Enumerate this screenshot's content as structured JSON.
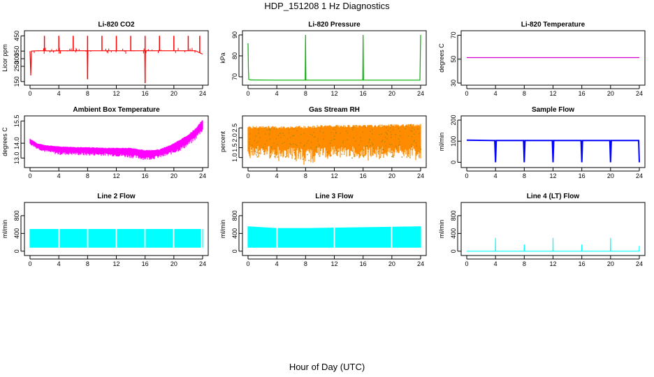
{
  "page_title": "HDP_151208  1 Hz Diagnostics",
  "x_title": "Hour of Day (UTC)",
  "chart_data": [
    {
      "type": "line",
      "title": "Li-820 CO2",
      "ylabel": "Licor ppm",
      "color": "#ff0000",
      "xlim": [
        0,
        24
      ],
      "ylim": [
        140,
        470
      ],
      "xticks": [
        0,
        4,
        8,
        12,
        16,
        20,
        24
      ],
      "yticks": [
        150,
        250,
        300,
        350,
        450
      ],
      "ytick_labels": [
        "150",
        "250",
        "300",
        "350",
        "450"
      ],
      "series": [
        {
          "x": [
            0,
            0.1,
            0.2,
            1,
            2,
            3,
            4,
            5,
            6,
            7,
            7.95,
            8,
            8.05,
            9,
            10,
            11,
            12,
            13,
            14,
            15,
            15.95,
            16,
            16.05,
            17,
            18,
            19,
            20,
            21,
            22,
            23,
            24
          ],
          "y": [
            350,
            190,
            350,
            352,
            352,
            351,
            352,
            352,
            352,
            352,
            352,
            165,
            352,
            352,
            352,
            352,
            352,
            352,
            352,
            352,
            352,
            140,
            352,
            352,
            352,
            352,
            352,
            352,
            352,
            352,
            330
          ],
          "spikes_x": [
            2,
            4,
            6,
            8,
            10,
            12,
            14,
            16,
            18,
            20,
            22,
            23.6
          ],
          "spikes_y": [
            450,
            450,
            450,
            450,
            450,
            450,
            450,
            450,
            450,
            450,
            450,
            450
          ]
        }
      ]
    },
    {
      "type": "line",
      "title": "Li-820 Pressure",
      "ylabel": "kPa",
      "color": "#00b000",
      "xlim": [
        0,
        24
      ],
      "ylim": [
        67,
        91
      ],
      "xticks": [
        0,
        4,
        8,
        12,
        16,
        20,
        24
      ],
      "yticks": [
        70,
        80,
        90
      ],
      "ytick_labels": [
        "70",
        "80",
        "90"
      ],
      "series": [
        {
          "x": [
            0,
            0.05,
            0.1,
            0.3,
            4,
            7.95,
            8,
            8.05,
            12,
            15.95,
            16,
            16.05,
            20,
            23.9,
            24
          ],
          "y": [
            86,
            74,
            68.8,
            68.5,
            68.4,
            68.4,
            90,
            68.4,
            68.4,
            68.4,
            90,
            68.4,
            68.4,
            68.4,
            90
          ]
        }
      ]
    },
    {
      "type": "line",
      "title": "Li-820 Temperature",
      "ylabel": "degrees C",
      "color": "#d000d0",
      "xlim": [
        0,
        24
      ],
      "ylim": [
        30,
        72
      ],
      "xticks": [
        0,
        4,
        8,
        12,
        16,
        20,
        24
      ],
      "yticks": [
        30,
        50,
        70
      ],
      "ytick_labels": [
        "30",
        "50",
        "70"
      ],
      "series": [
        {
          "x": [
            0,
            24
          ],
          "y": [
            51.3,
            51.3
          ]
        }
      ]
    },
    {
      "type": "area",
      "title": "Ambient Box Temperature",
      "ylabel": "degrees C",
      "color": "#ff00ff",
      "xlim": [
        0,
        24
      ],
      "ylim": [
        12.5,
        15.7
      ],
      "xticks": [
        0,
        4,
        8,
        12,
        16,
        20,
        24
      ],
      "yticks": [
        13.0,
        14.0,
        15.5
      ],
      "ytick_labels": [
        "13.0",
        "14.0",
        "15.5"
      ],
      "series": [
        {
          "x": [
            0,
            1,
            2,
            4,
            6,
            8,
            10,
            12,
            14,
            16,
            17,
            18,
            19,
            20,
            21,
            22,
            23,
            24
          ],
          "y_low": [
            13.9,
            13.6,
            13.4,
            13.2,
            13.2,
            13.15,
            13.15,
            13.1,
            13.0,
            12.85,
            12.9,
            13.0,
            13.1,
            13.3,
            13.5,
            13.8,
            14.2,
            14.8
          ],
          "y_high": [
            14.3,
            14.0,
            13.9,
            13.8,
            13.75,
            13.75,
            13.7,
            13.7,
            13.7,
            13.55,
            13.55,
            13.6,
            13.8,
            14.0,
            14.3,
            14.6,
            15.0,
            15.6
          ]
        }
      ]
    },
    {
      "type": "area",
      "title": "Gas Stream RH",
      "ylabel": "percent",
      "color": "#ff8c00",
      "xlim": [
        0,
        24
      ],
      "ylim": [
        0.6,
        3.0
      ],
      "xticks": [
        0,
        4,
        8,
        12,
        16,
        20,
        24
      ],
      "yticks": [
        1.0,
        1.5,
        2.0,
        2.5
      ],
      "ytick_labels": [
        "1.0",
        "1.5",
        "2.0",
        "2.5"
      ],
      "series": [
        {
          "x": [
            0,
            2,
            4,
            6,
            8,
            10,
            12,
            14,
            16,
            18,
            20,
            22,
            24
          ],
          "y_low": [
            1.0,
            1.1,
            1.0,
            1.0,
            0.8,
            1.0,
            1.0,
            1.0,
            1.0,
            1.0,
            1.0,
            1.0,
            1.1
          ],
          "y_high": [
            2.6,
            2.6,
            2.6,
            2.6,
            2.6,
            2.65,
            2.65,
            2.65,
            2.65,
            2.65,
            2.7,
            2.7,
            2.7
          ]
        }
      ]
    },
    {
      "type": "line",
      "title": "Sample Flow",
      "ylabel": "ml/min",
      "color": "#0000ff",
      "xlim": [
        0,
        24
      ],
      "ylim": [
        -15,
        210
      ],
      "xticks": [
        0,
        4,
        8,
        12,
        16,
        20,
        24
      ],
      "yticks": [
        0,
        100,
        200
      ],
      "ytick_labels": [
        "0",
        "100",
        "200"
      ],
      "series": [
        {
          "x": [
            0,
            3.9,
            4,
            4.1,
            7.9,
            8,
            8.1,
            11.9,
            12,
            12.1,
            15.9,
            16,
            16.1,
            19.9,
            20,
            20.1,
            23.9,
            24
          ],
          "y": [
            105,
            103,
            0,
            103,
            103,
            0,
            103,
            103,
            0,
            103,
            103,
            0,
            103,
            103,
            0,
            103,
            103,
            0
          ]
        }
      ]
    },
    {
      "type": "area",
      "title": "Line 2 Flow",
      "ylabel": "ml/min",
      "color": "#00ffff",
      "xlim": [
        0,
        24
      ],
      "ylim": [
        -50,
        1050
      ],
      "xticks": [
        0,
        4,
        8,
        12,
        16,
        20,
        24
      ],
      "yticks": [
        0,
        400,
        800
      ],
      "ytick_labels": [
        "0",
        "400",
        "800"
      ],
      "series": [
        {
          "x": [
            0,
            24
          ],
          "y_low": [
            80,
            80
          ],
          "y_high": [
            500,
            500
          ],
          "gaps_x": [
            4,
            8,
            12,
            16,
            20,
            23.9
          ]
        }
      ]
    },
    {
      "type": "area",
      "title": "Line 3 Flow",
      "ylabel": "ml/min",
      "color": "#00ffff",
      "xlim": [
        0,
        24
      ],
      "ylim": [
        -50,
        1050
      ],
      "xticks": [
        0,
        4,
        8,
        12,
        16,
        20,
        24
      ],
      "yticks": [
        0,
        400,
        800
      ],
      "ytick_labels": [
        "0",
        "400",
        "800"
      ],
      "series": [
        {
          "x": [
            0,
            4,
            8,
            12,
            16,
            20,
            24
          ],
          "y_low": [
            80,
            80,
            80,
            80,
            80,
            80,
            80
          ],
          "y_high": [
            560,
            520,
            520,
            530,
            540,
            550,
            560
          ],
          "gaps_x": [
            4,
            12,
            20
          ]
        }
      ]
    },
    {
      "type": "line",
      "title": "Line 4 (LT) Flow",
      "ylabel": "ml/min",
      "color": "#00ffff",
      "xlim": [
        0,
        24
      ],
      "ylim": [
        -50,
        1050
      ],
      "xticks": [
        0,
        4,
        8,
        12,
        16,
        20,
        24
      ],
      "yticks": [
        0,
        400,
        800
      ],
      "ytick_labels": [
        "0",
        "400",
        "800"
      ],
      "series": [
        {
          "x": [
            0,
            3.98,
            4,
            4.02,
            7.98,
            8,
            8.02,
            11.98,
            12,
            12.02,
            15.98,
            16,
            16.02,
            19.98,
            20,
            20.02,
            23.98,
            24
          ],
          "y": [
            0,
            0,
            300,
            0,
            0,
            150,
            0,
            0,
            300,
            0,
            0,
            150,
            0,
            0,
            300,
            0,
            0,
            120
          ]
        }
      ]
    }
  ]
}
